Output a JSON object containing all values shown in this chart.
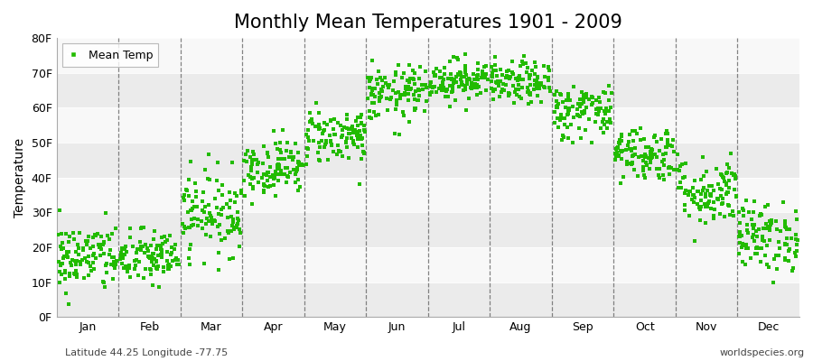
{
  "title": "Monthly Mean Temperatures 1901 - 2009",
  "ylabel": "Temperature",
  "xlabel_bottom_left": "Latitude 44.25 Longitude -77.75",
  "xlabel_bottom_right": "worldspecies.org",
  "yticks": [
    0,
    10,
    20,
    30,
    40,
    50,
    60,
    70,
    80
  ],
  "ytick_labels": [
    "0F",
    "10F",
    "20F",
    "30F",
    "40F",
    "50F",
    "60F",
    "70F",
    "80F"
  ],
  "ylim": [
    0,
    80
  ],
  "dot_color": "#22bb00",
  "dot_size": 6,
  "background_color": "#ffffff",
  "plot_bg_color": "#ffffff",
  "band_colors": [
    "#ebebeb",
    "#f8f8f8"
  ],
  "grid_color": "#666666",
  "title_fontsize": 15,
  "months": [
    "Jan",
    "Feb",
    "Mar",
    "Apr",
    "May",
    "Jun",
    "Jul",
    "Aug",
    "Sep",
    "Oct",
    "Nov",
    "Dec"
  ],
  "month_means": [
    17,
    17,
    30,
    43,
    52,
    64,
    68,
    67,
    59,
    47,
    36,
    23
  ],
  "month_stds": [
    5,
    4,
    6,
    4,
    4,
    4,
    3,
    3,
    4,
    4,
    5,
    5
  ],
  "n_years": 109
}
